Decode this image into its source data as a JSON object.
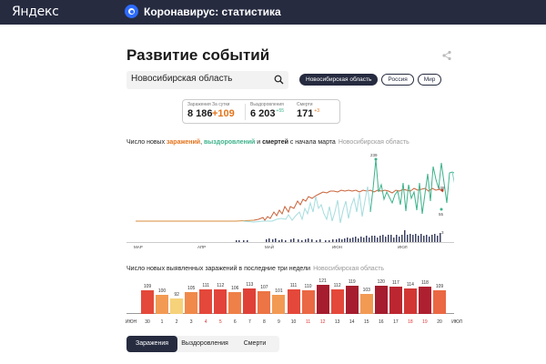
{
  "header": {
    "logo": "Яндекс",
    "section_icon": "virus-icon",
    "section_title": "Коронавирус: статистика"
  },
  "page": {
    "title": "Развитие событий",
    "share_icon": "share-icon"
  },
  "search": {
    "value": "Новосибирская область",
    "icon": "search-icon"
  },
  "region_chips": [
    {
      "label": "Новосибирская область",
      "active": true
    },
    {
      "label": "Россия",
      "active": false
    },
    {
      "label": "Мир",
      "active": false
    }
  ],
  "stats": {
    "infected_label": "Заражения",
    "infected_value": "8 186",
    "daily_label": "За сутки",
    "daily_value": "+109",
    "recovered_label": "Выздоровления",
    "recovered_value": "6 203",
    "recovered_delta": "+55",
    "deaths_label": "Смерти",
    "deaths_value": "171",
    "deaths_delta": "+3"
  },
  "chart1": {
    "caption_prefix": "Число новых ",
    "caption_infections": "заражений",
    "caption_sep": ", ",
    "caption_recoveries": "выздоровлений",
    "caption_and": " и ",
    "caption_deaths": "смертей",
    "caption_suffix": " с начала марта",
    "caption_region": "Новосибирская область"
  },
  "chart2": {
    "caption": "Число новых выявленных заражений в последние три недели",
    "caption_region": "Новосибирская область"
  },
  "tabs": [
    {
      "label": "Заражения",
      "active": true
    },
    {
      "label": "Выздоровления",
      "active": false
    },
    {
      "label": "Смерти",
      "active": false
    }
  ],
  "chart_data": [
    {
      "type": "line",
      "title": "Число новых заражений, выздоровлений и смертей с начала марта",
      "subtitle": "Новосибирская область",
      "x_tick_labels": [
        "МАР",
        "АПР",
        "МАЙ",
        "ИЮН",
        "ИЮЛ"
      ],
      "series": [
        {
          "name": "заражения",
          "color": "#b5432e",
          "last_value": 109
        },
        {
          "name": "выздоровления",
          "color": "#3db28a",
          "peak_value": 239,
          "last_value": 55
        },
        {
          "name": "смерти",
          "color": "#262b40",
          "type": "bar",
          "last_value": 3
        }
      ],
      "annotations": [
        "239",
        "109",
        "55",
        "3"
      ],
      "grid": false
    },
    {
      "type": "bar",
      "title": "Число новых выявленных заражений в последние три недели",
      "subtitle": "Новосибирская область",
      "x_start_label": "ИЮН",
      "x_end_label": "ИЮЛ",
      "categories": [
        "30",
        "1",
        "2",
        "3",
        "4",
        "5",
        "6",
        "7",
        "8",
        "9",
        "10",
        "11",
        "12",
        "13",
        "14",
        "15",
        "16",
        "17",
        "18",
        "19",
        "20"
      ],
      "values": [
        109,
        100,
        92,
        105,
        111,
        112,
        106,
        113,
        107,
        101,
        111,
        110,
        121,
        112,
        119,
        103,
        120,
        117,
        114,
        118,
        109
      ],
      "weekend_categories": [
        "4",
        "5",
        "11",
        "12",
        "18",
        "19"
      ],
      "colors": [
        "#e4483a",
        "#f29a53",
        "#f6d27a",
        "#f0894a",
        "#e4483a",
        "#e2433a",
        "#ef8047",
        "#df4138",
        "#ec7445",
        "#f29a53",
        "#e4483a",
        "#ea6843",
        "#a51d2e",
        "#e4483a",
        "#a51d2e",
        "#f29a53",
        "#a51d2e",
        "#bb2630",
        "#d23634",
        "#ae2030",
        "#ea6843"
      ],
      "ylim": [
        0,
        125
      ],
      "grid": false
    }
  ]
}
